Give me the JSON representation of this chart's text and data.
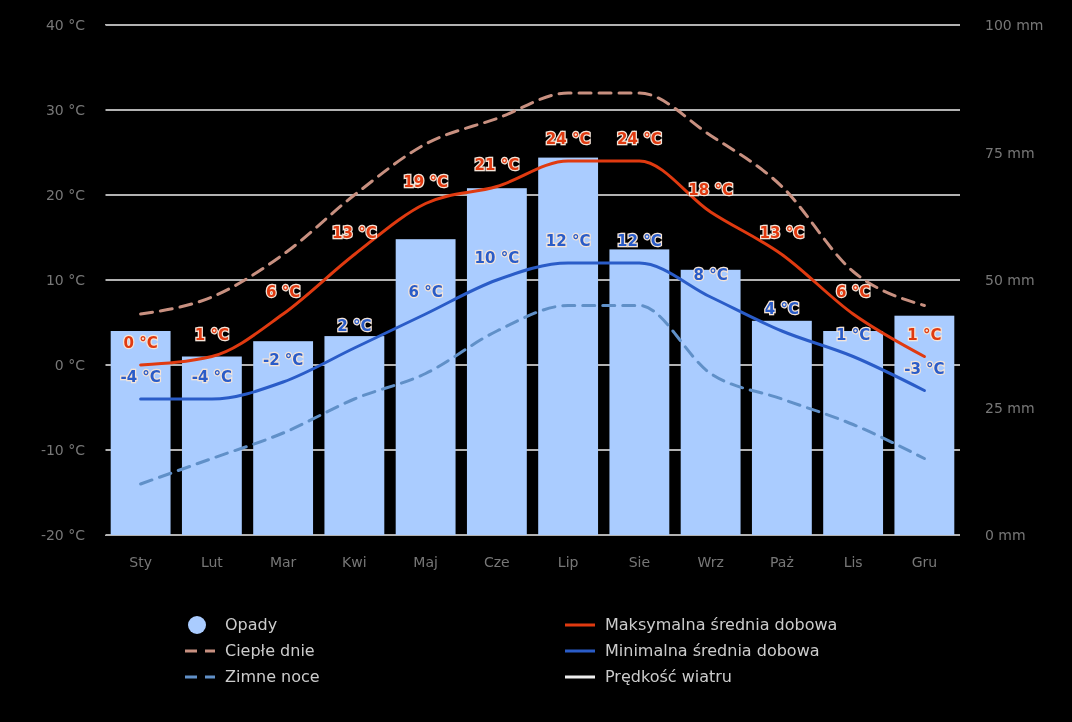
{
  "chart_data": {
    "type": "line",
    "categories": [
      "Sty",
      "Lut",
      "Mar",
      "Kwi",
      "Maj",
      "Cze",
      "Lip",
      "Sie",
      "Wrz",
      "Paż",
      "Lis",
      "Gru"
    ],
    "ylim": [
      -20,
      40
    ],
    "yticks": [
      {
        "value": -20,
        "label": "-20 °C"
      },
      {
        "value": -10,
        "label": "-10 °C"
      },
      {
        "value": 0,
        "label": "0 °C"
      },
      {
        "value": 10,
        "label": "10 °C"
      },
      {
        "value": 20,
        "label": "20 °C"
      },
      {
        "value": 30,
        "label": "30 °C"
      },
      {
        "value": 40,
        "label": "40 °C"
      }
    ],
    "y2lim": [
      0,
      100
    ],
    "y2ticks": [
      {
        "value": 0,
        "label": "0 mm"
      },
      {
        "value": 25,
        "label": "25 mm"
      },
      {
        "value": 50,
        "label": "50 mm"
      },
      {
        "value": 75,
        "label": "75 mm"
      },
      {
        "value": 100,
        "label": "100 mm"
      }
    ],
    "grid": "y",
    "legend": "bottom",
    "series": [
      {
        "name": "Opady",
        "type": "bar",
        "axis": "y2",
        "color": "#aaccff",
        "values": [
          40,
          35,
          38,
          39,
          58,
          68,
          74,
          56,
          52,
          42,
          40,
          43
        ]
      },
      {
        "name": "Ciepłe dnie",
        "line_style": "dashed",
        "color": "#c89080",
        "values": [
          6,
          8,
          13,
          20,
          26,
          29,
          32,
          32,
          27,
          21,
          11,
          7
        ]
      },
      {
        "name": "Zimne noce",
        "line_style": "dashed",
        "color": "#6090c8",
        "values": [
          -14,
          -11,
          -8,
          -4,
          -1,
          4,
          7,
          7,
          -1,
          -4,
          -7,
          -11
        ]
      },
      {
        "name": "Maksymalna średnia dobowa",
        "color": "#e03a10",
        "values": [
          0,
          1,
          6,
          13,
          19,
          21,
          24,
          24,
          18,
          13,
          6,
          1
        ],
        "value_labels": [
          "0 °C",
          "1 °C",
          "6 °C",
          "13 °C",
          "19 °C",
          "21 °C",
          "24 °C",
          "24 °C",
          "18 °C",
          "13 °C",
          "6 °C",
          "1 °C"
        ]
      },
      {
        "name": "Minimalna średnia dobowa",
        "color": "#2a5cc8",
        "values": [
          -4,
          -4,
          -2,
          2,
          6,
          10,
          12,
          12,
          8,
          4,
          1,
          -3
        ],
        "value_labels": [
          "-4 °C",
          "-4 °C",
          "-2 °C",
          "2 °C",
          "6 °C",
          "10 °C",
          "12 °C",
          "12 °C",
          "8 °C",
          "4 °C",
          "1 °C",
          "-3 °C"
        ]
      },
      {
        "name": "Prędkość wiatru",
        "color": "#eeeeee",
        "values": [
          null,
          null,
          null,
          null,
          null,
          null,
          null,
          null,
          null,
          null,
          null,
          null
        ]
      }
    ]
  }
}
